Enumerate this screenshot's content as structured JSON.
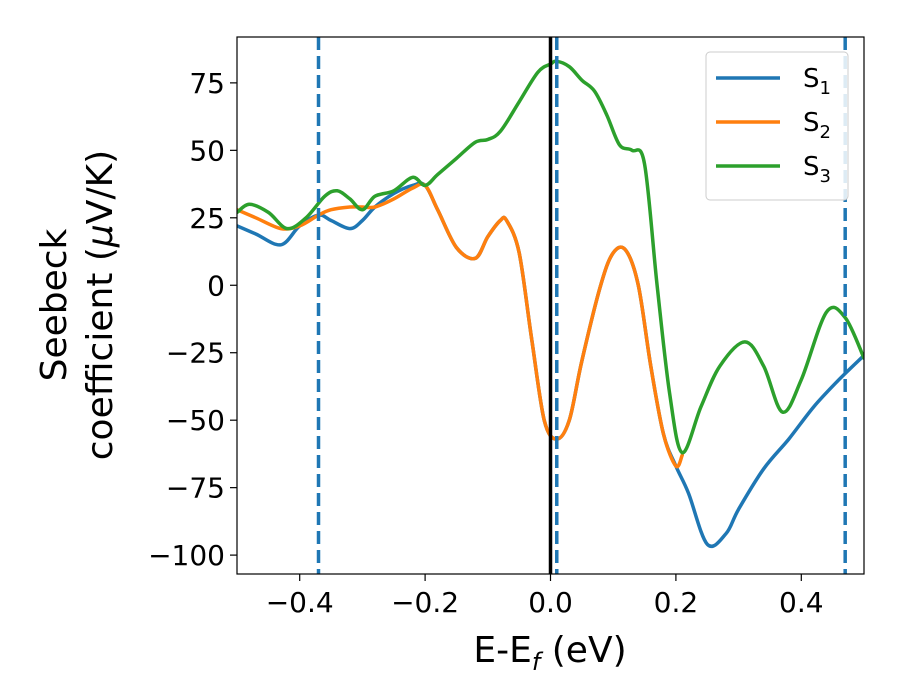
{
  "chart_data": {
    "type": "line",
    "xlabel": {
      "main": "E-E",
      "sub": "f",
      "suffix": " (eV)"
    },
    "ylabel": {
      "line1": "Seebeck",
      "line2_prefix": "coefficient  (",
      "mu": "μ",
      "line2_suffix": "V/K)"
    },
    "xlim": [
      -0.5,
      0.5
    ],
    "ylim": [
      -107,
      92
    ],
    "xticks": [
      -0.4,
      -0.2,
      0.0,
      0.2,
      0.4
    ],
    "xtick_labels": [
      "−0.4",
      "−0.2",
      "0.0",
      "0.2",
      "0.4"
    ],
    "yticks": [
      -100,
      -75,
      -50,
      -25,
      0,
      25,
      50,
      75
    ],
    "ytick_labels": [
      "−100",
      "−75",
      "−50",
      "−25",
      "0",
      "25",
      "50",
      "75"
    ],
    "grid": false,
    "legend_position": "top-right",
    "vlines": [
      {
        "x": -0.37,
        "style": "dashed",
        "color": "#1f77b4"
      },
      {
        "x": 0.0,
        "style": "solid",
        "color": "#000000"
      },
      {
        "x": 0.01,
        "style": "dashed",
        "color": "#1f77b4"
      },
      {
        "x": 0.47,
        "style": "dashed",
        "color": "#1f77b4"
      }
    ],
    "series": [
      {
        "name_main": "S",
        "name_sub": "1",
        "color": "#1f77b4",
        "x": [
          -0.5,
          -0.47,
          -0.43,
          -0.4,
          -0.37,
          -0.35,
          -0.32,
          -0.3,
          -0.28,
          -0.25,
          -0.22,
          -0.2,
          -0.18,
          -0.15,
          -0.12,
          -0.1,
          -0.08,
          -0.07,
          -0.05,
          -0.03,
          -0.01,
          0.01,
          0.03,
          0.05,
          0.08,
          0.1,
          0.12,
          0.14,
          0.16,
          0.18,
          0.2,
          0.22,
          0.25,
          0.28,
          0.3,
          0.34,
          0.38,
          0.42,
          0.46,
          0.5
        ],
        "y": [
          22,
          19,
          15,
          22,
          26,
          24,
          21,
          24,
          29,
          34,
          37,
          37,
          28,
          14,
          10,
          18,
          24,
          24,
          12,
          -20,
          -50,
          -57,
          -50,
          -28,
          0,
          12,
          13,
          0,
          -30,
          -55,
          -67,
          -77,
          -96,
          -92,
          -83,
          -68,
          -57,
          -45,
          -35,
          -26
        ]
      },
      {
        "name_main": "S",
        "name_sub": "2",
        "color": "#ff7f0e",
        "x": [
          -0.5,
          -0.47,
          -0.43,
          -0.4,
          -0.37,
          -0.35,
          -0.32,
          -0.3,
          -0.28,
          -0.25,
          -0.22,
          -0.2,
          -0.18,
          -0.15,
          -0.12,
          -0.1,
          -0.08,
          -0.07,
          -0.05,
          -0.03,
          -0.01,
          0.01,
          0.03,
          0.05,
          0.08,
          0.1,
          0.12,
          0.14,
          0.16,
          0.18,
          0.2,
          0.21
        ],
        "y": [
          28,
          25,
          21,
          22,
          26,
          28,
          29,
          29,
          29,
          32,
          36,
          37,
          28,
          14,
          10,
          18,
          24,
          24,
          12,
          -20,
          -50,
          -57,
          -50,
          -28,
          0,
          12,
          13,
          0,
          -30,
          -55,
          -67,
          -63
        ]
      },
      {
        "name_main": "S",
        "name_sub": "3",
        "color": "#2ca02c",
        "x": [
          -0.5,
          -0.48,
          -0.45,
          -0.42,
          -0.39,
          -0.36,
          -0.34,
          -0.32,
          -0.3,
          -0.28,
          -0.25,
          -0.22,
          -0.2,
          -0.18,
          -0.15,
          -0.12,
          -0.1,
          -0.08,
          -0.05,
          -0.02,
          0.0,
          0.01,
          0.03,
          0.05,
          0.07,
          0.09,
          0.11,
          0.13,
          0.15,
          0.17,
          0.19,
          0.21,
          0.24,
          0.27,
          0.31,
          0.34,
          0.37,
          0.4,
          0.44,
          0.47,
          0.5
        ],
        "y": [
          27,
          30,
          27,
          21,
          25,
          33,
          35,
          32,
          28,
          33,
          35,
          40,
          37,
          41,
          47,
          53,
          54,
          57,
          68,
          79,
          82,
          83,
          81,
          76,
          72,
          63,
          52,
          50,
          45,
          0,
          -40,
          -62,
          -45,
          -30,
          -21,
          -30,
          -47,
          -35,
          -10,
          -12,
          -27
        ]
      }
    ]
  }
}
